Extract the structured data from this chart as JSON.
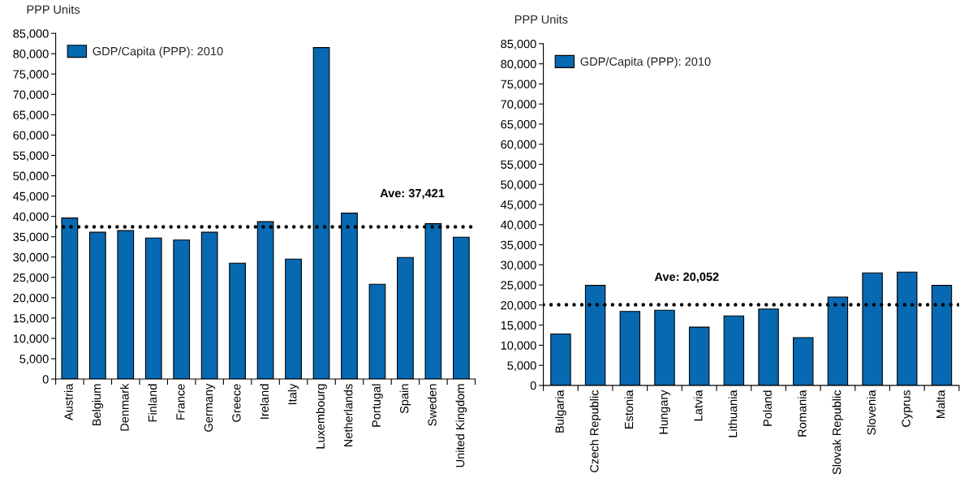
{
  "chart_data": [
    {
      "type": "bar",
      "ylabel": "PPP Units",
      "categories": [
        "Austria",
        "Belgium",
        "Denmark",
        "Finland",
        "France",
        "Germany",
        "Greece",
        "Ireland",
        "Italy",
        "Luxembourg",
        "Netherlands",
        "Portugal",
        "Spain",
        "Sweden",
        "United Kingdom"
      ],
      "series": [
        {
          "name": "GDP/Capita (PPP): 2010",
          "color": "#0669b2",
          "values": [
            39600,
            36100,
            36500,
            34700,
            34200,
            36100,
            28500,
            38700,
            29500,
            81500,
            40800,
            23300,
            29900,
            38200,
            34900
          ]
        }
      ],
      "ylim": [
        0,
        85000
      ],
      "yticks": [
        0,
        {
          "value": 5000,
          "label": "5,000"
        },
        {
          "value": 10000,
          "label": "10,000"
        },
        {
          "value": 15000,
          "label": "15,000"
        },
        {
          "value": 20000,
          "label": "20,000"
        },
        {
          "value": 25000,
          "label": "25,000"
        },
        {
          "value": 30000,
          "label": "30,000"
        },
        {
          "value": 35000,
          "label": "35,000"
        },
        {
          "value": 40000,
          "label": "40,000"
        },
        {
          "value": 45000,
          "label": "45,000"
        },
        {
          "value": 50000,
          "label": "50,000"
        },
        {
          "value": 55000,
          "label": "55,000"
        },
        {
          "value": 60000,
          "label": "60,000"
        },
        {
          "value": 65000,
          "label": "65,000"
        },
        {
          "value": 70000,
          "label": "70,000"
        },
        {
          "value": 75000,
          "label": "75,000"
        },
        {
          "value": 80000,
          "label": "80,000"
        },
        {
          "value": 85000,
          "label": "85,000"
        }
      ],
      "legend": "top left",
      "ref_lines": [
        {
          "axis": "y",
          "value": 37421,
          "label": "Ave: 37,421",
          "color": "#000000",
          "line_style": "dotted"
        }
      ]
    },
    {
      "type": "bar",
      "ylabel": "PPP Units",
      "categories": [
        "Bulgaria",
        "Czech Republic",
        "Estonia",
        "Hungary",
        "Latvia",
        "Lithuania",
        "Poland",
        "Romania",
        "Slovak Republic",
        "Slovenia",
        "Cyprus",
        "Malta"
      ],
      "series": [
        {
          "name": "GDP/Capita (PPP): 2010",
          "color": "#0669b2",
          "values": [
            12800,
            24900,
            18400,
            18700,
            14500,
            17300,
            19000,
            11900,
            22000,
            28000,
            28200,
            24900
          ]
        }
      ],
      "ylim": [
        0,
        85000
      ],
      "yticks": [
        0,
        {
          "value": 5000,
          "label": "5,000"
        },
        {
          "value": 10000,
          "label": "10,000"
        },
        {
          "value": 15000,
          "label": "15,000"
        },
        {
          "value": 20000,
          "label": "20,000"
        },
        {
          "value": 25000,
          "label": "25,000"
        },
        {
          "value": 30000,
          "label": "30,000"
        },
        {
          "value": 35000,
          "label": "35,000"
        },
        {
          "value": 40000,
          "label": "40,000"
        },
        {
          "value": 45000,
          "label": "45,000"
        },
        {
          "value": 50000,
          "label": "50,000"
        },
        {
          "value": 55000,
          "label": "55,000"
        },
        {
          "value": 60000,
          "label": "60,000"
        },
        {
          "value": 65000,
          "label": "65,000"
        },
        {
          "value": 70000,
          "label": "70,000"
        },
        {
          "value": 75000,
          "label": "75,000"
        },
        {
          "value": 80000,
          "label": "80,000"
        },
        {
          "value": 85000,
          "label": "85,000"
        }
      ],
      "legend": "top left",
      "ref_lines": [
        {
          "axis": "y",
          "value": 20052,
          "label": "Ave: 20,052",
          "color": "#000000",
          "line_style": "dotted"
        }
      ]
    }
  ]
}
